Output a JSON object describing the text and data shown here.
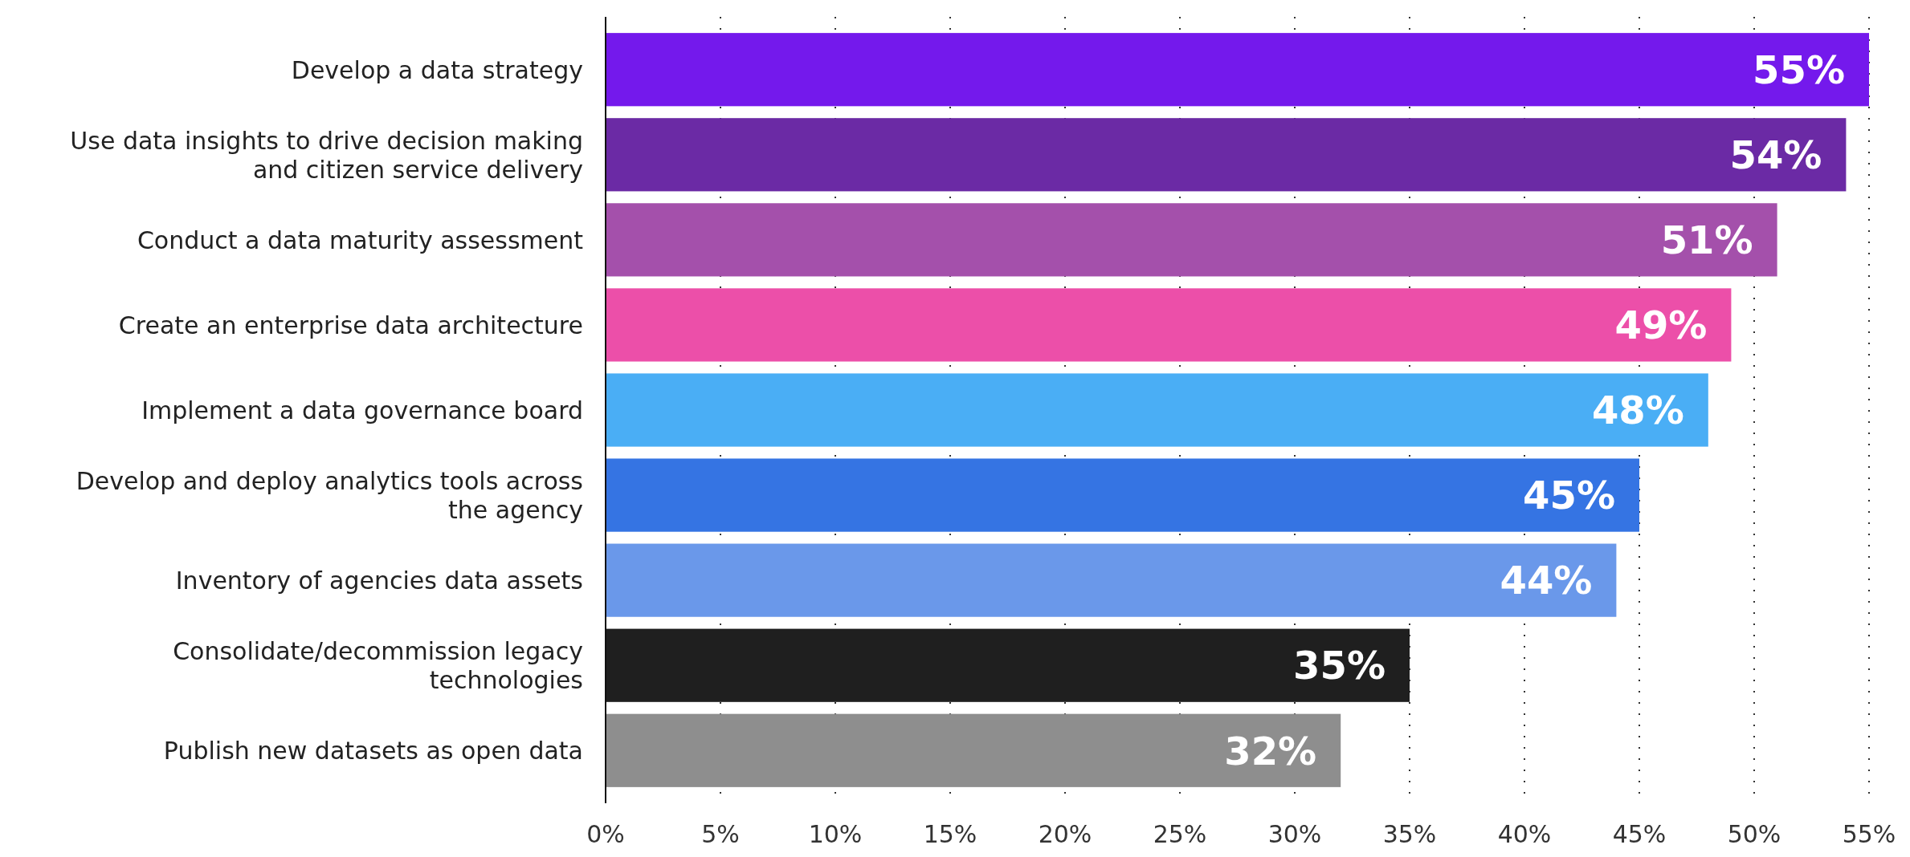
{
  "chart_data": {
    "type": "bar",
    "orientation": "horizontal",
    "categories": [
      "Develop a data strategy",
      "Use data insights to drive decision making and citizen service delivery",
      "Conduct a data maturity assessment",
      "Create an enterprise data architecture",
      "Implement a data governance board",
      "Develop and deploy analytics tools across the agency",
      "Inventory of agencies data assets",
      "Consolidate/decommission legacy technologies",
      "Publish new datasets as open data"
    ],
    "values": [
      55,
      54,
      51,
      49,
      48,
      45,
      44,
      35,
      32
    ],
    "colors": [
      "#7419ec",
      "#6b2aa5",
      "#a450ab",
      "#ec4fa9",
      "#4aaef5",
      "#3574e3",
      "#6a98ea",
      "#1f1f1f",
      "#8e8e8e"
    ],
    "xlim": [
      0,
      55
    ],
    "xticks": [
      {
        "value": 0,
        "label": "0%"
      },
      {
        "value": 5,
        "label": "5%"
      },
      {
        "value": 10,
        "label": "10%"
      },
      {
        "value": 15,
        "label": "15%"
      },
      {
        "value": 20,
        "label": "20%"
      },
      {
        "value": 25,
        "label": "25%"
      },
      {
        "value": 30,
        "label": "30%"
      },
      {
        "value": 35,
        "label": "35%"
      },
      {
        "value": 40,
        "label": "40%"
      },
      {
        "value": 45,
        "label": "45%"
      },
      {
        "value": 50,
        "label": "50%"
      },
      {
        "value": 55,
        "label": "55%"
      }
    ],
    "value_labels": [
      "55%",
      "54%",
      "51%",
      "49%",
      "48%",
      "45%",
      "44%",
      "35%",
      "32%"
    ],
    "grid": "x"
  }
}
